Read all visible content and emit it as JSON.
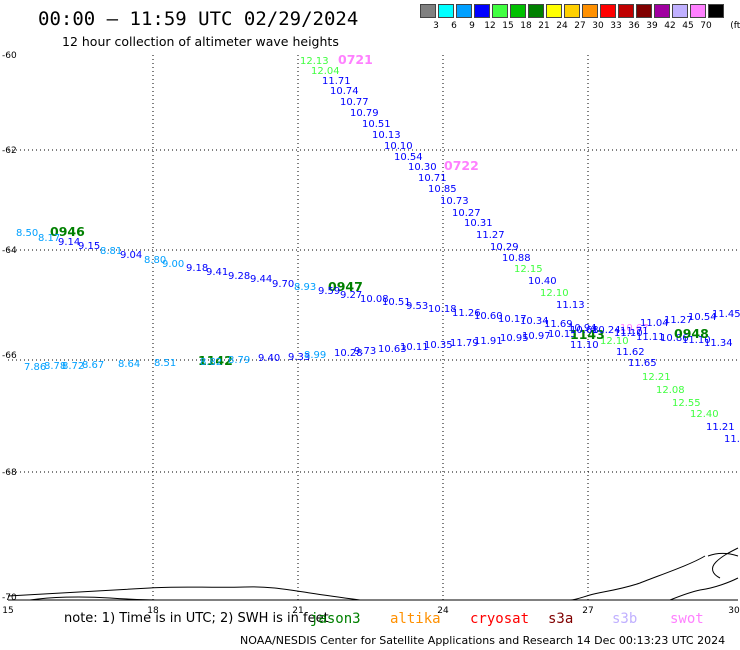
{
  "title": "00:00 – 11:59 UTC 02/29/2024",
  "subtitle": "12 hour collection of altimeter wave heights",
  "legend": {
    "unit": "(ft)",
    "bins": [
      {
        "label": "3",
        "color": "#808080"
      },
      {
        "label": "6",
        "color": "#00ffff"
      },
      {
        "label": "9",
        "color": "#00a0ff"
      },
      {
        "label": "12",
        "color": "#0000ff"
      },
      {
        "label": "15",
        "color": "#40ff40"
      },
      {
        "label": "18",
        "color": "#00c000"
      },
      {
        "label": "21",
        "color": "#008000"
      },
      {
        "label": "24",
        "color": "#ffff00"
      },
      {
        "label": "27",
        "color": "#ffd000"
      },
      {
        "label": "30",
        "color": "#ff9000"
      },
      {
        "label": "33",
        "color": "#ff0000"
      },
      {
        "label": "36",
        "color": "#c00000"
      },
      {
        "label": "39",
        "color": "#800000"
      },
      {
        "label": "42",
        "color": "#a000a0"
      },
      {
        "label": "45",
        "color": "#c0b0ff"
      },
      {
        "label": "70",
        "color": "#ff80ff"
      },
      {
        "label": "",
        "color": "#000000"
      }
    ]
  },
  "axes": {
    "y_ticks": [
      "-60",
      "-62",
      "-64",
      "-66",
      "-68",
      "-70"
    ],
    "x_ticks": [
      "15",
      "18",
      "21",
      "24",
      "27",
      "30"
    ]
  },
  "tracks": [
    {
      "time": "0721",
      "time_color": "#ff80ff",
      "points": [
        {
          "v": "12.13",
          "c": "#40ff40"
        },
        {
          "v": "12.04",
          "c": "#40ff40"
        },
        {
          "v": "11.71",
          "c": "#0000ff"
        },
        {
          "v": "10.74",
          "c": "#0000ff"
        },
        {
          "v": "10.77",
          "c": "#0000ff"
        },
        {
          "v": "10.79",
          "c": "#0000ff"
        },
        {
          "v": "10.51",
          "c": "#0000ff"
        },
        {
          "v": "10.13",
          "c": "#0000ff"
        },
        {
          "v": "10.10",
          "c": "#0000ff"
        },
        {
          "v": "10.54",
          "c": "#0000ff"
        }
      ]
    },
    {
      "time": "0722",
      "time_color": "#ff80ff",
      "points": [
        {
          "v": "10.30",
          "c": "#0000ff"
        },
        {
          "v": "10.71",
          "c": "#0000ff"
        },
        {
          "v": "10.85",
          "c": "#0000ff"
        },
        {
          "v": "10.73",
          "c": "#0000ff"
        },
        {
          "v": "10.27",
          "c": "#0000ff"
        },
        {
          "v": "10.31",
          "c": "#0000ff"
        },
        {
          "v": "11.27",
          "c": "#0000ff"
        },
        {
          "v": "10.29",
          "c": "#0000ff"
        },
        {
          "v": "10.88",
          "c": "#0000ff"
        },
        {
          "v": "12.15",
          "c": "#40ff40"
        },
        {
          "v": "10.40",
          "c": "#0000ff"
        },
        {
          "v": "12.10",
          "c": "#40ff40"
        },
        {
          "v": "11.13",
          "c": "#0000ff"
        },
        {
          "v": "11.10",
          "c": "#0000ff"
        },
        {
          "v": "12.10",
          "c": "#40ff40"
        },
        {
          "v": "11.62",
          "c": "#0000ff"
        },
        {
          "v": "11.65",
          "c": "#0000ff"
        },
        {
          "v": "12.21",
          "c": "#40ff40"
        },
        {
          "v": "12.08",
          "c": "#40ff40"
        },
        {
          "v": "12.55",
          "c": "#40ff40"
        },
        {
          "v": "12.40",
          "c": "#40ff40"
        },
        {
          "v": "11.21",
          "c": "#0000ff"
        },
        {
          "v": "11.",
          "c": "#0000ff"
        }
      ]
    },
    {
      "time": "0946",
      "time_color": "#008000",
      "points": [
        {
          "v": "8.50",
          "c": "#00a0ff"
        },
        {
          "v": "8.17",
          "c": "#00a0ff"
        },
        {
          "v": "9.14",
          "c": "#0000ff"
        },
        {
          "v": "9.15",
          "c": "#0000ff"
        },
        {
          "v": "8.81",
          "c": "#00a0ff"
        },
        {
          "v": "9.04",
          "c": "#0000ff"
        },
        {
          "v": "8.80",
          "c": "#00a0ff"
        },
        {
          "v": "9.00",
          "c": "#00a0ff"
        },
        {
          "v": "9.18",
          "c": "#0000ff"
        },
        {
          "v": "9.41",
          "c": "#0000ff"
        },
        {
          "v": "9.28",
          "c": "#0000ff"
        },
        {
          "v": "9.44",
          "c": "#0000ff"
        },
        {
          "v": "9.70",
          "c": "#0000ff"
        },
        {
          "v": "8.93",
          "c": "#00a0ff"
        }
      ]
    },
    {
      "time": "0947",
      "time_color": "#008000",
      "points": [
        {
          "v": "9.59",
          "c": "#0000ff"
        },
        {
          "v": "9.27",
          "c": "#0000ff"
        },
        {
          "v": "10.08",
          "c": "#0000ff"
        },
        {
          "v": "10.51",
          "c": "#0000ff"
        },
        {
          "v": "9.53",
          "c": "#0000ff"
        },
        {
          "v": "10.18",
          "c": "#0000ff"
        },
        {
          "v": "11.26",
          "c": "#0000ff"
        },
        {
          "v": "10.60",
          "c": "#0000ff"
        },
        {
          "v": "10.17",
          "c": "#0000ff"
        },
        {
          "v": "10.34",
          "c": "#0000ff"
        },
        {
          "v": "11.69",
          "c": "#0000ff"
        },
        {
          "v": "10.94",
          "c": "#0000ff"
        },
        {
          "v": "10.67",
          "c": "#ff80ff"
        },
        {
          "v": "11.71",
          "c": "#0000ff"
        },
        {
          "v": "11.04",
          "c": "#0000ff"
        },
        {
          "v": "11.27",
          "c": "#0000ff"
        },
        {
          "v": "10.54",
          "c": "#0000ff"
        },
        {
          "v": "11.45",
          "c": "#0000ff"
        }
      ]
    },
    {
      "time": "1142",
      "time_color": "#008000",
      "points": [
        {
          "v": "7.86",
          "c": "#00a0ff"
        },
        {
          "v": "8.78",
          "c": "#00a0ff"
        },
        {
          "v": "8.72",
          "c": "#00a0ff"
        },
        {
          "v": "8.67",
          "c": "#00a0ff"
        },
        {
          "v": "8.64",
          "c": "#00a0ff"
        },
        {
          "v": "8.51",
          "c": "#00a0ff"
        },
        {
          "v": "8.82",
          "c": "#00a0ff"
        },
        {
          "v": "8.79",
          "c": "#00a0ff"
        },
        {
          "v": "9.40",
          "c": "#0000ff"
        },
        {
          "v": "9.33",
          "c": "#0000ff"
        },
        {
          "v": "8.99",
          "c": "#00a0ff"
        },
        {
          "v": "10.28",
          "c": "#0000ff"
        },
        {
          "v": "9.73",
          "c": "#0000ff"
        },
        {
          "v": "10.63",
          "c": "#0000ff"
        },
        {
          "v": "10.11",
          "c": "#0000ff"
        },
        {
          "v": "10.35",
          "c": "#0000ff"
        },
        {
          "v": "11.79",
          "c": "#0000ff"
        },
        {
          "v": "11.91",
          "c": "#0000ff"
        },
        {
          "v": "10.95",
          "c": "#0000ff"
        },
        {
          "v": "10.97",
          "c": "#0000ff"
        },
        {
          "v": "10.15",
          "c": "#0000ff"
        }
      ]
    },
    {
      "time": "1143",
      "time_color": "#008000",
      "points": [
        {
          "v": "10.68",
          "c": "#0000ff"
        },
        {
          "v": "10.24",
          "c": "#0000ff"
        },
        {
          "v": "11.10",
          "c": "#0000ff"
        },
        {
          "v": "11.11",
          "c": "#0000ff"
        },
        {
          "v": "10.86",
          "c": "#0000ff"
        },
        {
          "v": "11.10",
          "c": "#0000ff"
        },
        {
          "v": "11.34",
          "c": "#0000ff"
        }
      ]
    },
    {
      "time": "0948",
      "time_color": "#008000",
      "points": []
    }
  ],
  "note": {
    "prefix": "note: 1) Time is in UTC; 2) SWH is in feet",
    "satellites": [
      {
        "name": "jason3",
        "color": "#008000"
      },
      {
        "name": "altika",
        "color": "#ff9000"
      },
      {
        "name": "cryosat",
        "color": "#ff0000"
      },
      {
        "name": "s3a",
        "color": "#800000"
      },
      {
        "name": "s3b",
        "color": "#c0b0ff"
      },
      {
        "name": "swot",
        "color": "#ff80ff"
      }
    ]
  },
  "footer": "NOAA/NESDIS Center for Satellite Applications and Research    14 Dec 00:13:23 UTC 2024"
}
